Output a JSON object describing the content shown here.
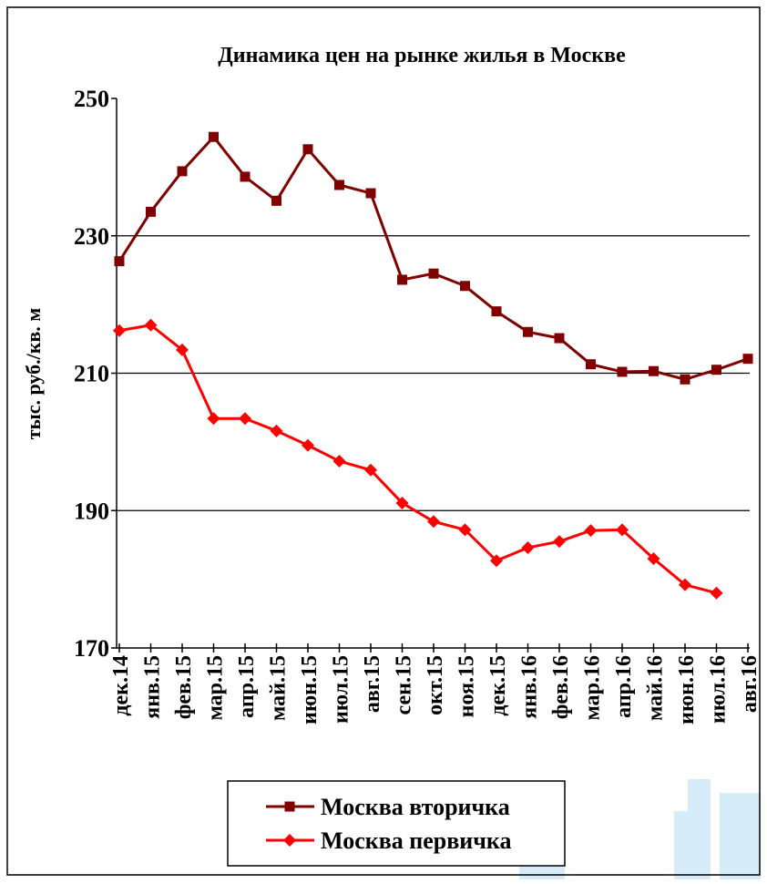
{
  "chart_data": {
    "type": "line",
    "title": "Динамика цен на рынке жилья в Москве",
    "y_label": "тыс. руб./кв. м",
    "categories": [
      "дек.14",
      "янв.15",
      "фев.15",
      "мар.15",
      "апр.15",
      "май.15",
      "июн.15",
      "июл.15",
      "авг.15",
      "сен.15",
      "окт.15",
      "ноя.15",
      "дек.15",
      "янв.16",
      "фев.16",
      "мар.16",
      "апр.16",
      "май.16",
      "июн.16",
      "июл.16",
      "авг.16"
    ],
    "series": [
      {
        "name": "Москва вторичка",
        "color": "#800000",
        "marker": "square",
        "values": [
          226.3,
          233.5,
          239.4,
          244.4,
          238.6,
          235.1,
          242.6,
          237.4,
          236.2,
          223.6,
          224.5,
          222.7,
          219.0,
          216.0,
          215.1,
          211.3,
          210.2,
          210.3,
          209.1,
          210.5,
          212.1
        ]
      },
      {
        "name": "Москва первичка",
        "color": "#ff0000",
        "marker": "diamond",
        "values": [
          216.2,
          217.0,
          213.4,
          203.4,
          203.4,
          201.6,
          199.5,
          197.2,
          195.9,
          191.1,
          188.4,
          187.2,
          182.7,
          184.6,
          185.5,
          187.1,
          187.2,
          183.0,
          179.2,
          178.0,
          null
        ]
      }
    ],
    "ylim": [
      170,
      250
    ],
    "yticks": [
      170,
      190,
      210,
      230,
      250
    ],
    "grid": true
  }
}
